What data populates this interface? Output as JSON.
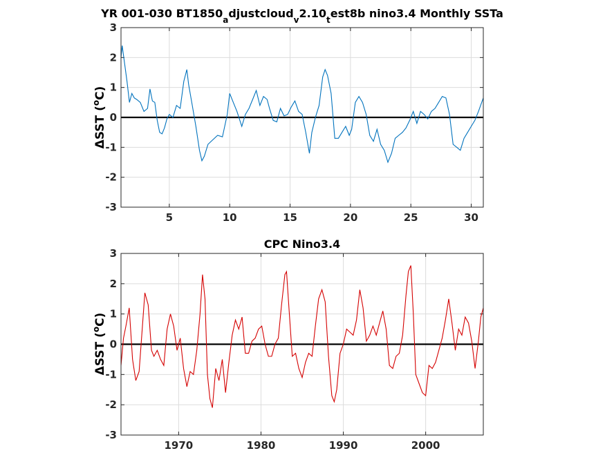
{
  "chart_data": [
    {
      "type": "line",
      "title_main": "YR 001-030 BT1850",
      "title_sub1": "a",
      "title_mid1": "djustcloud",
      "title_sub2": "v",
      "title_mid2": "2.10",
      "title_sub3": "t",
      "title_tail": "est8b nino3.4 Monthly SSTa",
      "ylabel_prefix": "ΔSST (",
      "ylabel_sup": "o",
      "ylabel_suffix": "C)",
      "xlim": [
        1,
        31
      ],
      "ylim": [
        -3,
        3
      ],
      "xticks": [
        5,
        10,
        15,
        20,
        25,
        30
      ],
      "yticks": [
        -3,
        -2,
        -1,
        0,
        1,
        2,
        3
      ],
      "color": "#0072bd",
      "series": [
        {
          "x": [
            1.0,
            1.1,
            1.3,
            1.5,
            1.7,
            1.9,
            2.1,
            2.3,
            2.6,
            2.9,
            3.2,
            3.4,
            3.6,
            3.8,
            4.0,
            4.2,
            4.4,
            4.6,
            4.8,
            5.0,
            5.3,
            5.6,
            5.9,
            6.2,
            6.45,
            6.6,
            6.9,
            7.2,
            7.5,
            7.7,
            7.9,
            8.2,
            8.6,
            9.0,
            9.4,
            9.8,
            10.0,
            10.3,
            10.6,
            11.0,
            11.3,
            11.6,
            11.9,
            12.2,
            12.5,
            12.8,
            13.1,
            13.3,
            13.6,
            13.9,
            14.2,
            14.5,
            14.8,
            15.1,
            15.4,
            15.7,
            16.0,
            16.3,
            16.6,
            16.8,
            17.1,
            17.4,
            17.7,
            17.9,
            18.1,
            18.4,
            18.7,
            19.0,
            19.3,
            19.6,
            19.9,
            20.1,
            20.4,
            20.7,
            21.0,
            21.3,
            21.6,
            21.9,
            22.2,
            22.5,
            22.8,
            23.1,
            23.4,
            23.7,
            24.0,
            24.3,
            24.6,
            24.9,
            25.2,
            25.5,
            25.8,
            26.1,
            26.4,
            26.7,
            27.0,
            27.3,
            27.6,
            27.9,
            28.2,
            28.5,
            28.8,
            29.1,
            29.4,
            29.7,
            30.0,
            30.3,
            30.6,
            31.0
          ],
          "y": [
            2.0,
            2.4,
            1.8,
            1.2,
            0.5,
            0.8,
            0.65,
            0.6,
            0.5,
            0.2,
            0.3,
            0.95,
            0.55,
            0.5,
            -0.1,
            -0.5,
            -0.55,
            -0.35,
            -0.05,
            0.1,
            0.0,
            0.4,
            0.3,
            1.2,
            1.6,
            1.1,
            0.4,
            -0.3,
            -1.1,
            -1.45,
            -1.3,
            -0.9,
            -0.75,
            -0.6,
            -0.65,
            0.1,
            0.8,
            0.5,
            0.2,
            -0.3,
            0.1,
            0.3,
            0.6,
            0.9,
            0.4,
            0.7,
            0.6,
            0.3,
            -0.1,
            -0.15,
            0.3,
            0.05,
            0.1,
            0.35,
            0.55,
            0.2,
            0.1,
            -0.5,
            -1.2,
            -0.5,
            0.0,
            0.4,
            1.35,
            1.6,
            1.4,
            0.8,
            -0.7,
            -0.7,
            -0.5,
            -0.3,
            -0.6,
            -0.4,
            0.5,
            0.7,
            0.5,
            0.1,
            -0.6,
            -0.8,
            -0.4,
            -0.9,
            -1.1,
            -1.5,
            -1.2,
            -0.7,
            -0.6,
            -0.5,
            -0.35,
            -0.1,
            0.2,
            -0.2,
            0.2,
            0.1,
            -0.05,
            0.2,
            0.3,
            0.5,
            0.7,
            0.65,
            0.1,
            -0.9,
            -1.0,
            -1.1,
            -0.7,
            -0.5,
            -0.3,
            -0.1,
            0.2,
            0.65
          ]
        }
      ]
    },
    {
      "type": "line",
      "title": "CPC Nino3.4",
      "ylabel_prefix": "ΔSST (",
      "ylabel_sup": "o",
      "ylabel_suffix": "C)",
      "xlim": [
        1963,
        2007
      ],
      "ylim": [
        -3,
        3
      ],
      "xticks": [
        1970,
        1980,
        1990,
        2000
      ],
      "yticks": [
        -3,
        -2,
        -1,
        0,
        1,
        2,
        3
      ],
      "color": "#d40000",
      "series": [
        {
          "x": [
            1963.0,
            1963.3,
            1963.6,
            1964.0,
            1964.4,
            1964.8,
            1965.2,
            1965.6,
            1965.9,
            1966.3,
            1966.7,
            1967.0,
            1967.4,
            1967.8,
            1968.2,
            1968.6,
            1969.0,
            1969.4,
            1969.8,
            1970.2,
            1970.6,
            1971.0,
            1971.4,
            1971.8,
            1972.2,
            1972.6,
            1972.9,
            1973.2,
            1973.5,
            1973.8,
            1974.1,
            1974.5,
            1974.9,
            1975.3,
            1975.7,
            1976.1,
            1976.5,
            1976.9,
            1977.3,
            1977.7,
            1978.1,
            1978.5,
            1978.9,
            1979.3,
            1979.7,
            1980.1,
            1980.5,
            1980.9,
            1981.3,
            1981.7,
            1982.1,
            1982.5,
            1982.9,
            1983.1,
            1983.4,
            1983.8,
            1984.2,
            1984.6,
            1985.0,
            1985.4,
            1985.8,
            1986.2,
            1986.6,
            1987.0,
            1987.4,
            1987.8,
            1988.2,
            1988.6,
            1988.9,
            1989.2,
            1989.6,
            1990.0,
            1990.4,
            1990.8,
            1991.2,
            1991.6,
            1992.0,
            1992.4,
            1992.8,
            1993.2,
            1993.6,
            1994.0,
            1994.4,
            1994.8,
            1995.2,
            1995.6,
            1996.0,
            1996.4,
            1996.8,
            1997.2,
            1997.6,
            1997.9,
            1998.2,
            1998.5,
            1998.8,
            1999.2,
            1999.6,
            2000.0,
            2000.4,
            2000.8,
            2001.2,
            2001.6,
            2002.0,
            2002.4,
            2002.8,
            2003.2,
            2003.6,
            2004.0,
            2004.4,
            2004.8,
            2005.2,
            2005.6,
            2006.0,
            2006.4,
            2006.7,
            2007.0
          ],
          "y": [
            -0.7,
            0.2,
            0.6,
            1.2,
            -0.5,
            -1.2,
            -0.9,
            0.6,
            1.7,
            1.3,
            -0.2,
            -0.4,
            -0.2,
            -0.5,
            -0.7,
            0.5,
            1.0,
            0.6,
            -0.2,
            0.2,
            -0.8,
            -1.4,
            -0.9,
            -1.0,
            -0.2,
            1.0,
            2.3,
            1.5,
            -1.0,
            -1.8,
            -2.1,
            -0.8,
            -1.2,
            -0.5,
            -1.6,
            -0.6,
            0.3,
            0.8,
            0.5,
            0.9,
            -0.3,
            -0.3,
            0.1,
            0.2,
            0.5,
            0.6,
            0.0,
            -0.4,
            -0.4,
            0.0,
            0.2,
            1.3,
            2.3,
            2.4,
            1.2,
            -0.4,
            -0.3,
            -0.8,
            -1.1,
            -0.6,
            -0.3,
            -0.4,
            0.6,
            1.5,
            1.8,
            1.4,
            -0.4,
            -1.7,
            -1.9,
            -1.5,
            -0.3,
            0.0,
            0.5,
            0.4,
            0.3,
            0.8,
            1.8,
            1.2,
            0.1,
            0.3,
            0.6,
            0.3,
            0.7,
            1.1,
            0.5,
            -0.7,
            -0.8,
            -0.4,
            -0.3,
            0.3,
            1.6,
            2.4,
            2.6,
            1.0,
            -1.0,
            -1.3,
            -1.6,
            -1.7,
            -0.7,
            -0.8,
            -0.6,
            -0.2,
            0.2,
            0.8,
            1.5,
            0.7,
            -0.2,
            0.5,
            0.3,
            0.9,
            0.7,
            0.1,
            -0.8,
            0.1,
            0.9,
            1.2
          ]
        }
      ]
    }
  ]
}
